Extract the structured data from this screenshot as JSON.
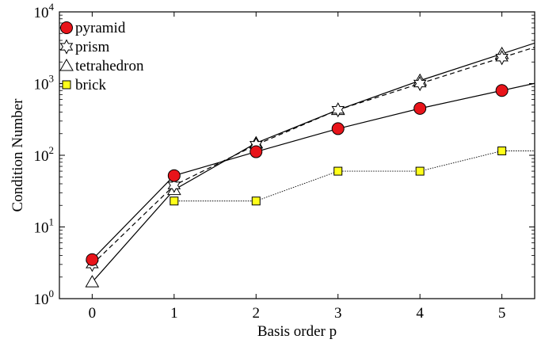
{
  "chart_data": {
    "type": "line",
    "title": "",
    "xlabel": "Basis order p",
    "ylabel": "Condition Number",
    "x": [
      0,
      1,
      2,
      3,
      4,
      5
    ],
    "xlim": [
      -0.4,
      5.4
    ],
    "xticks": [
      "0",
      "1",
      "2",
      "3",
      "4",
      "5"
    ],
    "ylim": [
      1,
      10000
    ],
    "yscale": "log",
    "yticks": [
      {
        "base": "10",
        "exp": "0"
      },
      {
        "base": "10",
        "exp": "1"
      },
      {
        "base": "10",
        "exp": "2"
      },
      {
        "base": "10",
        "exp": "3"
      },
      {
        "base": "10",
        "exp": "4"
      }
    ],
    "grid": false,
    "legend_position": "top-left",
    "series": [
      {
        "name": "pyramid",
        "values": [
          3.5,
          52,
          112,
          235,
          450,
          800
        ],
        "marker": "circle",
        "line": "solid",
        "color": "#e8141a"
      },
      {
        "name": "prism",
        "values": [
          3.0,
          38,
          140,
          430,
          1000,
          2300
        ],
        "marker": "hexagram",
        "line": "dashed",
        "color": "#ffffff"
      },
      {
        "name": "tetrahedron",
        "values": [
          1.7,
          33,
          148,
          430,
          1100,
          2600
        ],
        "marker": "triangle",
        "line": "solid",
        "color": "#ffffff"
      },
      {
        "name": "brick",
        "values": [
          null,
          23,
          23,
          60,
          60,
          115
        ],
        "marker": "square",
        "line": "dotted",
        "color": "#ffff1a"
      }
    ]
  }
}
